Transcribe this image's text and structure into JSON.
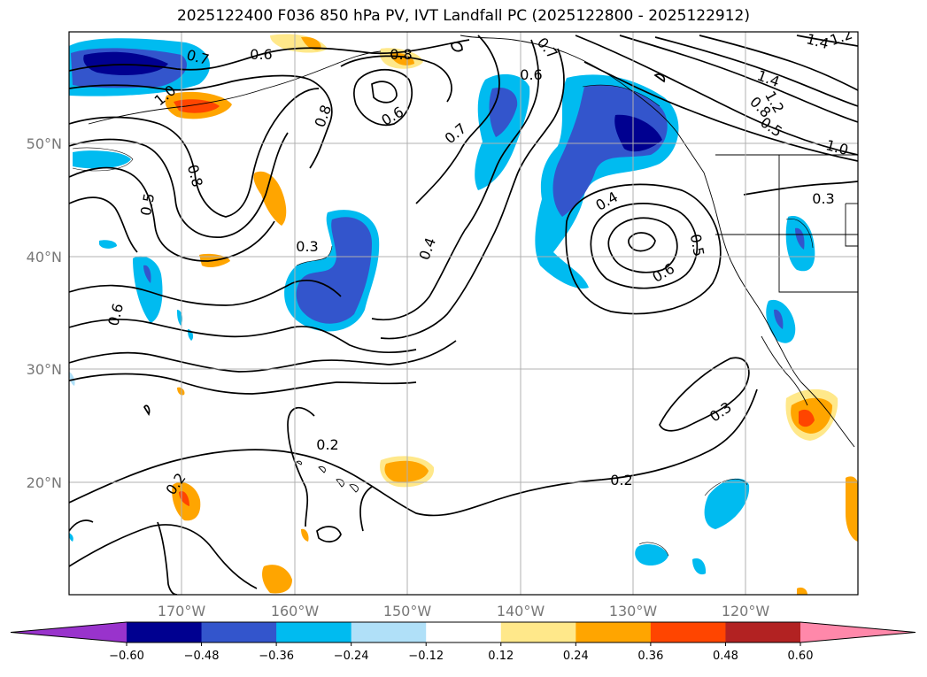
{
  "title": "2025122400 F036 850 hPa PV, IVT Landfall PC (2025122800 - 2025122912)",
  "lat_labels": [
    "50°N",
    "40°N",
    "30°N",
    "20°N"
  ],
  "lon_labels": [
    "170°W",
    "160°W",
    "150°W",
    "140°W",
    "130°W",
    "120°W"
  ],
  "colorbar": {
    "ticks": [
      "−0.60",
      "−0.48",
      "−0.36",
      "−0.24",
      "−0.12",
      "0.12",
      "0.24",
      "0.36",
      "0.48",
      "0.60"
    ],
    "colors": [
      "#9933cc",
      "#000090",
      "#3355cc",
      "#00bbf0",
      "#b0e0f8",
      "#ffffff",
      "#ffe88a",
      "#ffa500",
      "#ff4500",
      "#b22222",
      "#ff88aa"
    ]
  },
  "contour_labels": [
    "0.6",
    "0.7",
    "1.0",
    "0.8",
    "0.5",
    "0.6",
    "0.8",
    "0.6",
    "0.8",
    "0.3",
    "0.4",
    "0.7",
    "0.6",
    "0.7",
    "1.4",
    "1.2",
    "1.4",
    "0.8",
    "0.5",
    "1.0",
    "0.4",
    "0.6",
    "0.5",
    "0.3",
    "0.2",
    "0.2",
    "0.2",
    "0.3",
    "1.2"
  ]
}
